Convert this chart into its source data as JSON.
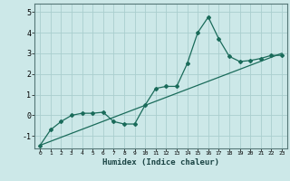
{
  "xlabel": "Humidex (Indice chaleur)",
  "ylabel": "",
  "bg_color": "#cce8e8",
  "grid_color": "#aacece",
  "line_color": "#1a6b5a",
  "xlim": [
    -0.5,
    23.5
  ],
  "ylim": [
    -1.6,
    5.4
  ],
  "xticks": [
    0,
    1,
    2,
    3,
    4,
    5,
    6,
    7,
    8,
    9,
    10,
    11,
    12,
    13,
    14,
    15,
    16,
    17,
    18,
    19,
    20,
    21,
    22,
    23
  ],
  "yticks": [
    -1,
    0,
    1,
    2,
    3,
    4,
    5
  ],
  "line1_x": [
    0,
    1,
    2,
    3,
    4,
    5,
    6,
    7,
    8,
    9,
    10,
    11,
    12,
    13,
    14,
    15,
    16,
    17,
    18,
    19,
    20,
    21,
    22,
    23
  ],
  "line1_y": [
    -1.45,
    -0.7,
    -0.3,
    0.0,
    0.1,
    0.1,
    0.15,
    -0.3,
    -0.42,
    -0.42,
    0.5,
    1.3,
    1.4,
    1.4,
    2.5,
    4.0,
    4.75,
    3.7,
    2.85,
    2.6,
    2.65,
    2.75,
    2.9,
    2.9
  ],
  "line2_x": [
    0,
    23
  ],
  "line2_y": [
    -1.45,
    3.0
  ]
}
